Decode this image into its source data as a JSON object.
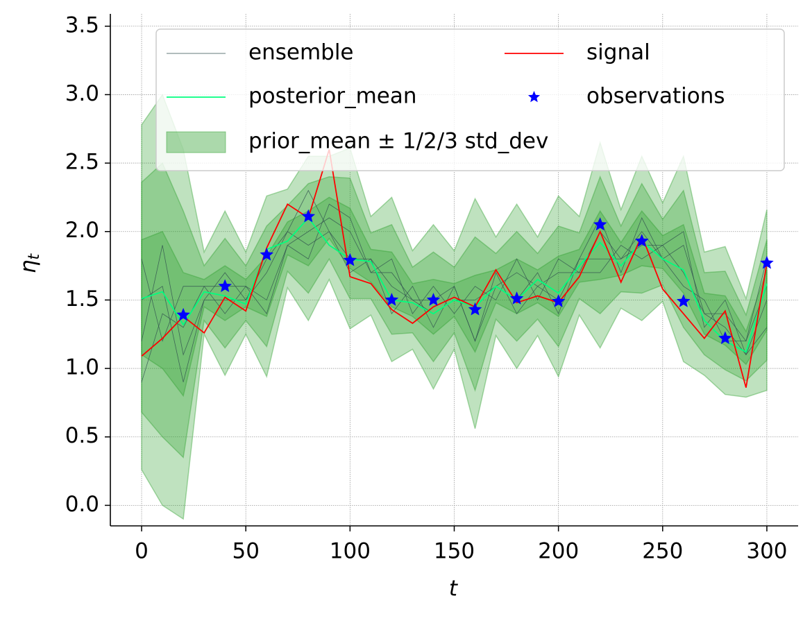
{
  "chart_data": {
    "type": "line",
    "xlabel": "t",
    "ylabel": {
      "base": "η",
      "sub": "t"
    },
    "x": [
      0,
      10,
      20,
      30,
      40,
      50,
      60,
      70,
      80,
      90,
      100,
      110,
      120,
      130,
      140,
      150,
      160,
      170,
      180,
      190,
      200,
      210,
      220,
      230,
      240,
      250,
      260,
      270,
      280,
      290,
      300
    ],
    "xlim": [
      -15,
      315
    ],
    "ylim": [
      -0.15,
      3.59
    ],
    "xticks": [
      0,
      50,
      100,
      150,
      200,
      250,
      300
    ],
    "yticks": [
      {
        "value": 0,
        "label": "0.0"
      },
      0.5,
      {
        "value": 1,
        "label": "1.0"
      },
      1.5,
      {
        "value": 2,
        "label": "2.0"
      },
      2.5,
      {
        "value": 3,
        "label": "3.0"
      },
      3.5
    ],
    "grid": true,
    "legend": "upper right",
    "ensemble": {
      "name": "ensemble",
      "color": "#2f4f4f",
      "members": [
        [
          1.2,
          1.9,
          1.1,
          1.5,
          1.7,
          1.5,
          1.8,
          2.0,
          2.3,
          2.0,
          1.7,
          1.8,
          1.4,
          1.6,
          1.3,
          1.6,
          1.2,
          1.7,
          1.4,
          1.6,
          1.5,
          1.8,
          2.1,
          1.7,
          2.1,
          1.8,
          1.6,
          1.5,
          1.2,
          1.2,
          1.8
        ],
        [
          1.8,
          1.2,
          1.6,
          1.6,
          1.4,
          1.6,
          1.4,
          1.9,
          1.8,
          2.2,
          2.1,
          1.7,
          1.8,
          1.4,
          1.6,
          1.4,
          1.6,
          1.5,
          1.8,
          1.5,
          1.8,
          1.7,
          1.7,
          1.9,
          1.8,
          1.9,
          2.0,
          1.3,
          1.5,
          1.1,
          1.3
        ],
        [
          1.5,
          1.6,
          0.9,
          1.5,
          1.5,
          1.5,
          1.7,
          2.0,
          1.9,
          2.0,
          1.8,
          1.8,
          1.6,
          1.5,
          1.5,
          1.6,
          1.2,
          1.6,
          1.5,
          1.7,
          1.4,
          1.8,
          1.8,
          1.8,
          1.9,
          1.9,
          1.7,
          1.4,
          1.3,
          1.1,
          1.5
        ],
        [
          0.9,
          1.4,
          1.3,
          1.6,
          1.6,
          1.6,
          1.5,
          1.9,
          2.0,
          2.1,
          2.0,
          1.7,
          1.7,
          1.5,
          1.4,
          1.5,
          1.5,
          1.6,
          1.7,
          1.6,
          1.7,
          1.7,
          2.0,
          1.8,
          2.0,
          1.8,
          1.9,
          1.4,
          1.4,
          1.2,
          1.6
        ]
      ]
    },
    "series": [
      {
        "name": "posterior_mean",
        "color": "#00ff7f",
        "values": [
          1.51,
          1.56,
          1.32,
          1.56,
          1.53,
          1.47,
          1.87,
          1.93,
          2.1,
          1.9,
          1.8,
          1.78,
          1.5,
          1.48,
          1.4,
          1.5,
          1.45,
          1.6,
          1.5,
          1.65,
          1.55,
          1.75,
          1.92,
          1.75,
          1.93,
          1.8,
          1.72,
          1.35,
          1.2,
          1.12,
          1.62
        ]
      },
      {
        "name": "signal",
        "color": "#ff0000",
        "values": [
          1.09,
          1.22,
          1.38,
          1.26,
          1.52,
          1.42,
          1.88,
          2.2,
          2.1,
          2.6,
          1.67,
          1.62,
          1.43,
          1.33,
          1.45,
          1.52,
          1.45,
          1.72,
          1.48,
          1.53,
          1.48,
          1.67,
          2.0,
          1.63,
          1.97,
          1.58,
          1.4,
          1.22,
          1.42,
          0.86,
          1.77
        ]
      }
    ],
    "band": {
      "name": "prior_mean ± 1/2/3 std_dev",
      "color": "#2ca02c",
      "prior_mean": [
        1.52,
        1.5,
        1.25,
        1.55,
        1.55,
        1.55,
        1.6,
        1.95,
        1.95,
        2.1,
        1.95,
        1.75,
        1.65,
        1.5,
        1.45,
        1.5,
        1.4,
        1.6,
        1.6,
        1.6,
        1.6,
        1.75,
        1.9,
        1.8,
        1.95,
        1.85,
        1.8,
        1.4,
        1.35,
        1.15,
        1.5
      ],
      "std_dev": [
        0.42,
        0.5,
        0.45,
        0.1,
        0.2,
        0.1,
        0.22,
        0.12,
        0.2,
        0.15,
        0.22,
        0.12,
        0.2,
        0.12,
        0.2,
        0.12,
        0.28,
        0.12,
        0.2,
        0.12,
        0.22,
        0.12,
        0.25,
        0.12,
        0.2,
        0.12,
        0.25,
        0.15,
        0.18,
        0.12,
        0.22
      ],
      "multiples": [
        1,
        2,
        3
      ]
    },
    "observations": {
      "name": "observations",
      "color": "#0000ff",
      "x": [
        20,
        40,
        60,
        80,
        100,
        120,
        140,
        160,
        180,
        200,
        220,
        240,
        260,
        280,
        300
      ],
      "values": [
        1.39,
        1.6,
        1.83,
        2.11,
        1.79,
        1.5,
        1.5,
        1.43,
        1.51,
        1.49,
        2.05,
        1.93,
        1.49,
        1.22,
        1.77
      ]
    }
  }
}
